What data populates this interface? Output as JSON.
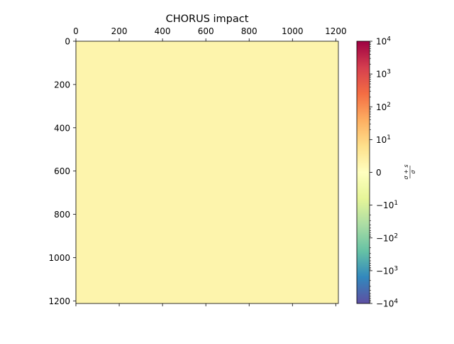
{
  "chart_data": {
    "type": "heatmap",
    "title": "CHORUS impact",
    "x_ticks": [
      "0",
      "200",
      "400",
      "600",
      "800",
      "1000",
      "1200"
    ],
    "x_tick_values": [
      0,
      200,
      400,
      600,
      800,
      1000,
      1200
    ],
    "y_ticks": [
      "0",
      "200",
      "400",
      "600",
      "800",
      "1000",
      "1200"
    ],
    "y_tick_values": [
      0,
      200,
      400,
      600,
      800,
      1000,
      1200
    ],
    "xlim": [
      0,
      1212
    ],
    "ylim": [
      1212,
      0
    ],
    "x_axis_position": "top",
    "grid": false,
    "matrix_fill_color": "#fdf4ac",
    "colormap": "Spectral",
    "colorbar": {
      "label": "(σ + s) / σ",
      "label_numerator": "σ + s",
      "label_denominator": "σ",
      "scale": "symlog",
      "range": [
        -10000,
        10000
      ],
      "linthresh": 10,
      "ticks": [
        {
          "base": "10",
          "exp": "4",
          "value": 10000
        },
        {
          "base": "10",
          "exp": "3",
          "value": 1000
        },
        {
          "base": "10",
          "exp": "2",
          "value": 100
        },
        {
          "base": "10",
          "exp": "1",
          "value": 10
        },
        {
          "base": "0",
          "exp": "",
          "value": 0
        },
        {
          "base": "−10",
          "exp": "1",
          "value": -10
        },
        {
          "base": "−10",
          "exp": "2",
          "value": -100
        },
        {
          "base": "−10",
          "exp": "3",
          "value": -1000
        },
        {
          "base": "−10",
          "exp": "4",
          "value": -10000
        }
      ],
      "colors": [
        "#5e4fa2",
        "#3288bd",
        "#66c2a5",
        "#abdda4",
        "#e6f598",
        "#ffffbf",
        "#fee08b",
        "#fdae61",
        "#f46d43",
        "#d53e4f",
        "#9e0142"
      ]
    }
  }
}
